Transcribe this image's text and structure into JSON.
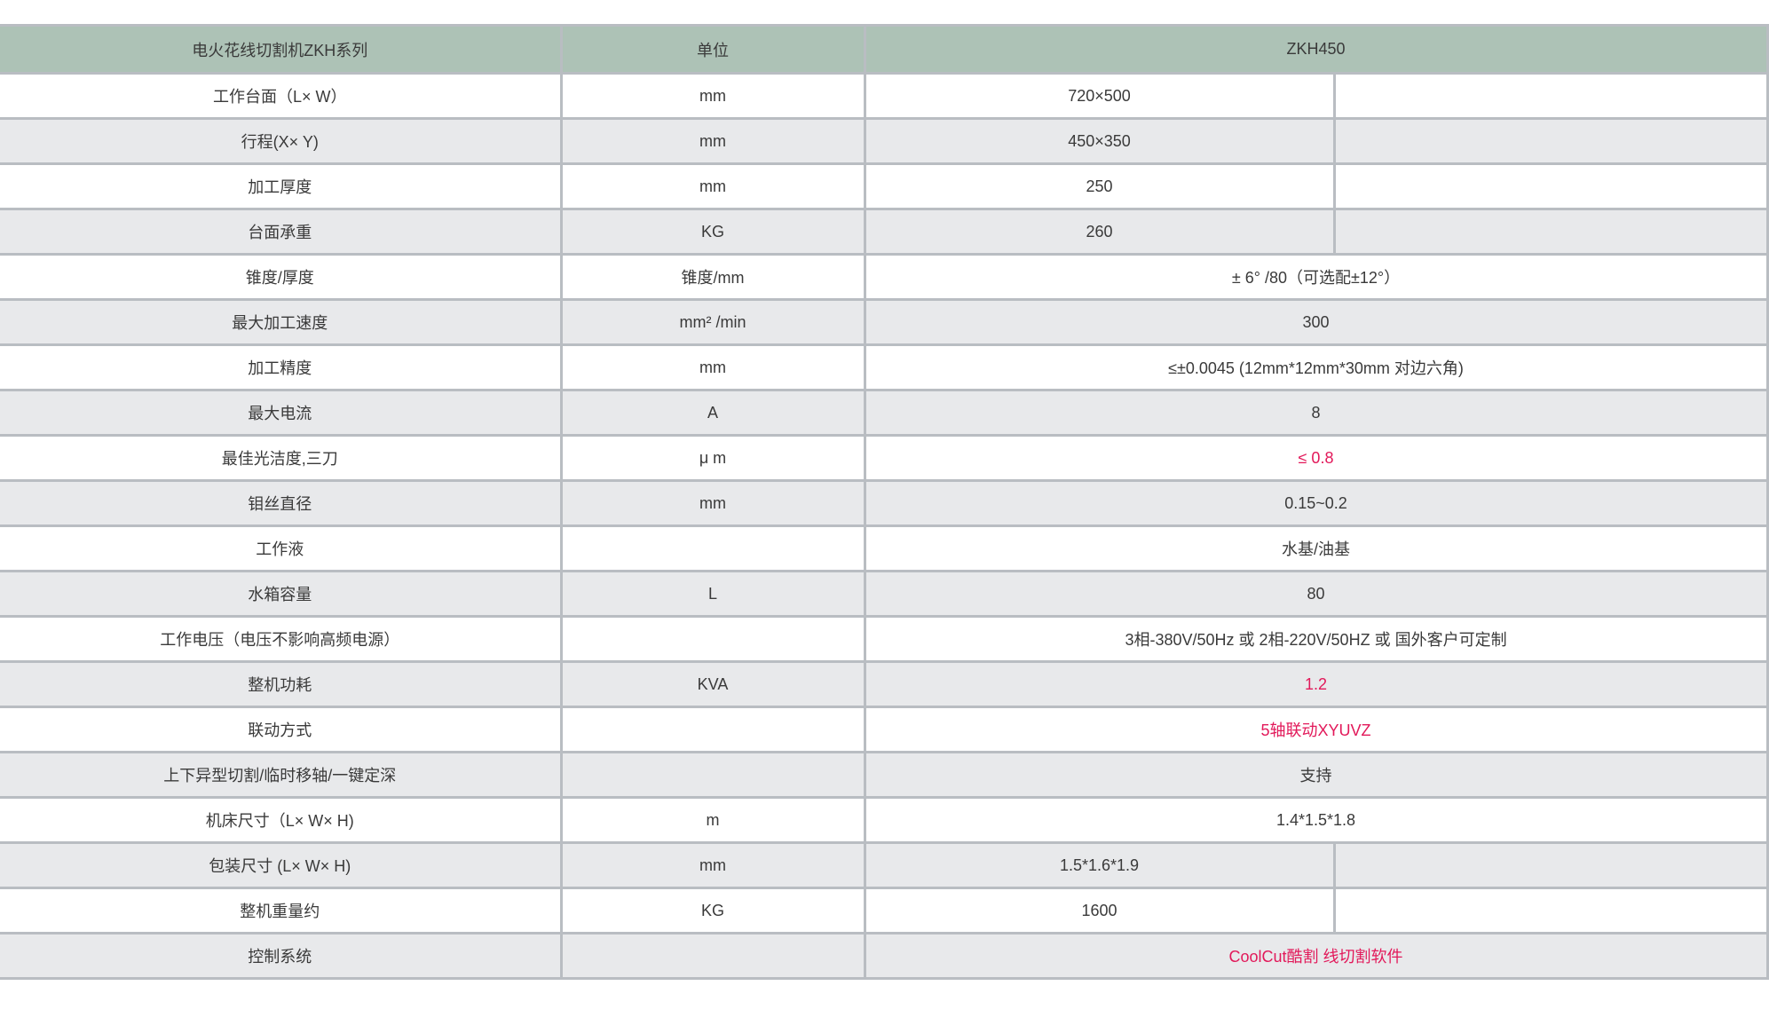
{
  "header": {
    "name": "电火花线切割机ZKH系列",
    "unit": "单位",
    "model": "ZKH450"
  },
  "accent_color": "#e2195a",
  "rows": [
    {
      "name": "工作台面（L× W）",
      "unit": "mm",
      "value": "720×500",
      "split": true
    },
    {
      "name": "行程(X× Y)",
      "unit": "mm",
      "value": "450×350",
      "split": true
    },
    {
      "name": "加工厚度",
      "unit": "mm",
      "value": "250",
      "split": true
    },
    {
      "name": "台面承重",
      "unit": "KG",
      "value": "260",
      "split": true
    },
    {
      "name": "锥度/厚度",
      "unit": "锥度/mm",
      "value": "± 6° /80（可选配±12°）"
    },
    {
      "name": "最大加工速度",
      "unit": "mm² /min",
      "value": "300"
    },
    {
      "name": "加工精度",
      "unit": "mm",
      "value": "≤±0.0045 (12mm*12mm*30mm 对边六角)"
    },
    {
      "name": "最大电流",
      "unit": "A",
      "value": "8"
    },
    {
      "name": "最佳光洁度,三刀",
      "unit": "μ m",
      "value": "≤ 0.8",
      "highlight": true
    },
    {
      "name": "钼丝直径",
      "unit": "mm",
      "value": "0.15~0.2"
    },
    {
      "name": "工作液",
      "unit": "",
      "value": "水基/油基"
    },
    {
      "name": "水箱容量",
      "unit": "L",
      "value": "80"
    },
    {
      "name": "工作电压（电压不影响高频电源）",
      "unit": "",
      "value": "3相-380V/50Hz 或 2相-220V/50HZ  或 国外客户可定制"
    },
    {
      "name": "整机功耗",
      "unit": "KVA",
      "value": "1.2",
      "highlight": true
    },
    {
      "name": "联动方式",
      "unit": "",
      "value": "5轴联动XYUVZ",
      "highlight": true
    },
    {
      "name": "上下异型切割/临时移轴/一键定深",
      "unit": "",
      "value": "支持"
    },
    {
      "name": "机床尺寸（L× W× H)",
      "unit": "m",
      "value": "1.4*1.5*1.8"
    },
    {
      "name": "包装尺寸 (L× W× H)",
      "unit": "mm",
      "value": "1.5*1.6*1.9",
      "split": true
    },
    {
      "name": "整机重量约",
      "unit": "KG",
      "value": "1600",
      "split": true
    },
    {
      "name": "控制系统",
      "unit": "",
      "value": "CoolCut酷割 线切割软件",
      "highlight": true
    }
  ]
}
